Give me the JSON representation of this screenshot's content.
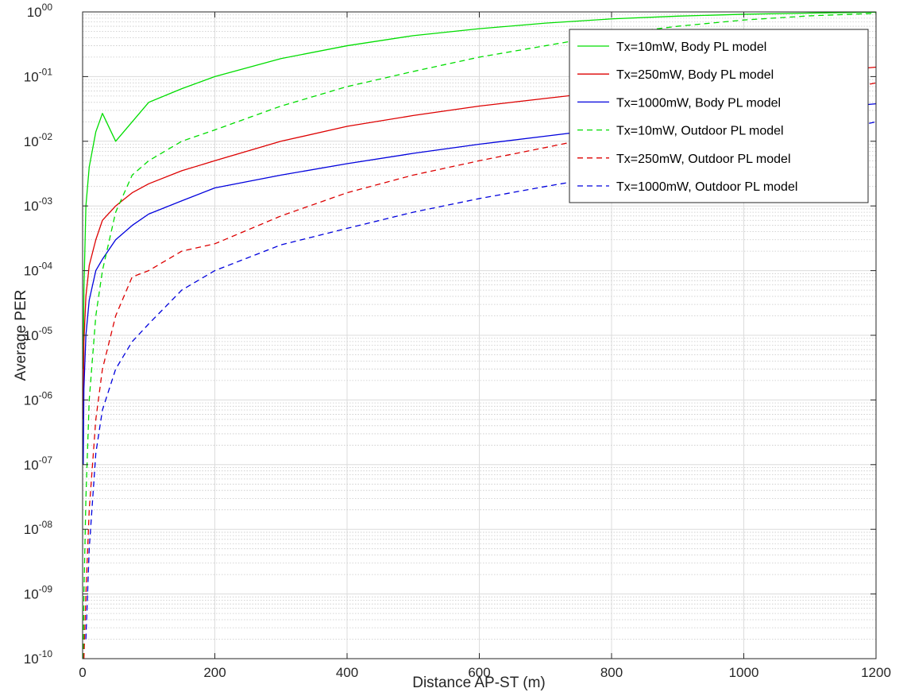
{
  "chart_data": {
    "type": "line",
    "xlabel": "Distance AP-ST (m)",
    "ylabel": "Average PER",
    "xlim": [
      0,
      1200
    ],
    "ylim": [
      1e-10,
      1
    ],
    "yscale": "log",
    "grid": true,
    "legend_position": "top-right",
    "x_ticks": [
      0,
      200,
      400,
      600,
      800,
      1000,
      1200
    ],
    "y_tick_exponents": [
      "00",
      "-01",
      "-02",
      "-03",
      "-04",
      "-05",
      "-06",
      "-07",
      "-08",
      "-09",
      "-10"
    ],
    "x": [
      1,
      2,
      5,
      10,
      20,
      30,
      50,
      75,
      100,
      150,
      200,
      300,
      400,
      500,
      600,
      700,
      800,
      900,
      1000,
      1100,
      1200
    ],
    "series": [
      {
        "name": "Tx=10mW, Body PL model",
        "color": "#00dd00",
        "dash": "solid",
        "values": [
          3e-06,
          5e-05,
          0.001,
          0.004,
          0.014,
          0.027,
          0.01,
          0.02,
          0.04,
          0.065,
          0.1,
          0.19,
          0.3,
          0.43,
          0.55,
          0.67,
          0.78,
          0.86,
          0.92,
          0.96,
          0.99
        ]
      },
      {
        "name": "Tx=250mW, Body PL model",
        "color": "#dd0000",
        "dash": "solid",
        "values": [
          5e-07,
          8e-06,
          4e-05,
          0.00012,
          0.0003,
          0.0006,
          0.001,
          0.0016,
          0.0022,
          0.0035,
          0.005,
          0.01,
          0.017,
          0.025,
          0.035,
          0.046,
          0.06,
          0.075,
          0.09,
          0.115,
          0.14
        ]
      },
      {
        "name": "Tx=1000mW, Body PL model",
        "color": "#0000dd",
        "dash": "solid",
        "values": [
          1e-07,
          1.5e-06,
          1e-05,
          3.5e-05,
          0.0001,
          0.00015,
          0.0003,
          0.0005,
          0.00075,
          0.0012,
          0.0019,
          0.003,
          0.0045,
          0.0065,
          0.009,
          0.012,
          0.016,
          0.02,
          0.025,
          0.031,
          0.038
        ]
      },
      {
        "name": "Tx=10mW, Outdoor PL model",
        "color": "#00dd00",
        "dash": "dashed",
        "values": [
          1e-10,
          1e-09,
          3e-08,
          1e-06,
          2e-05,
          0.0001,
          0.0008,
          0.003,
          0.005,
          0.01,
          0.015,
          0.035,
          0.07,
          0.12,
          0.2,
          0.3,
          0.45,
          0.6,
          0.75,
          0.87,
          0.95
        ]
      },
      {
        "name": "Tx=250mW, Outdoor PL model",
        "color": "#dd0000",
        "dash": "dashed",
        "values": [
          null,
          1e-10,
          1e-09,
          2e-08,
          5e-07,
          3e-06,
          2e-05,
          8e-05,
          0.0001,
          0.0002,
          0.00026,
          0.0007,
          0.0016,
          0.003,
          0.005,
          0.008,
          0.013,
          0.02,
          0.03,
          0.05,
          0.08
        ]
      },
      {
        "name": "Tx=1000mW, Outdoor PL model",
        "color": "#0000dd",
        "dash": "dashed",
        "values": [
          null,
          null,
          2e-10,
          5e-09,
          1.5e-07,
          7e-07,
          3e-06,
          8e-06,
          1.5e-05,
          5e-05,
          0.0001,
          0.00025,
          0.00045,
          0.0008,
          0.0013,
          0.002,
          0.003,
          0.005,
          0.0075,
          0.012,
          0.02
        ]
      }
    ]
  }
}
